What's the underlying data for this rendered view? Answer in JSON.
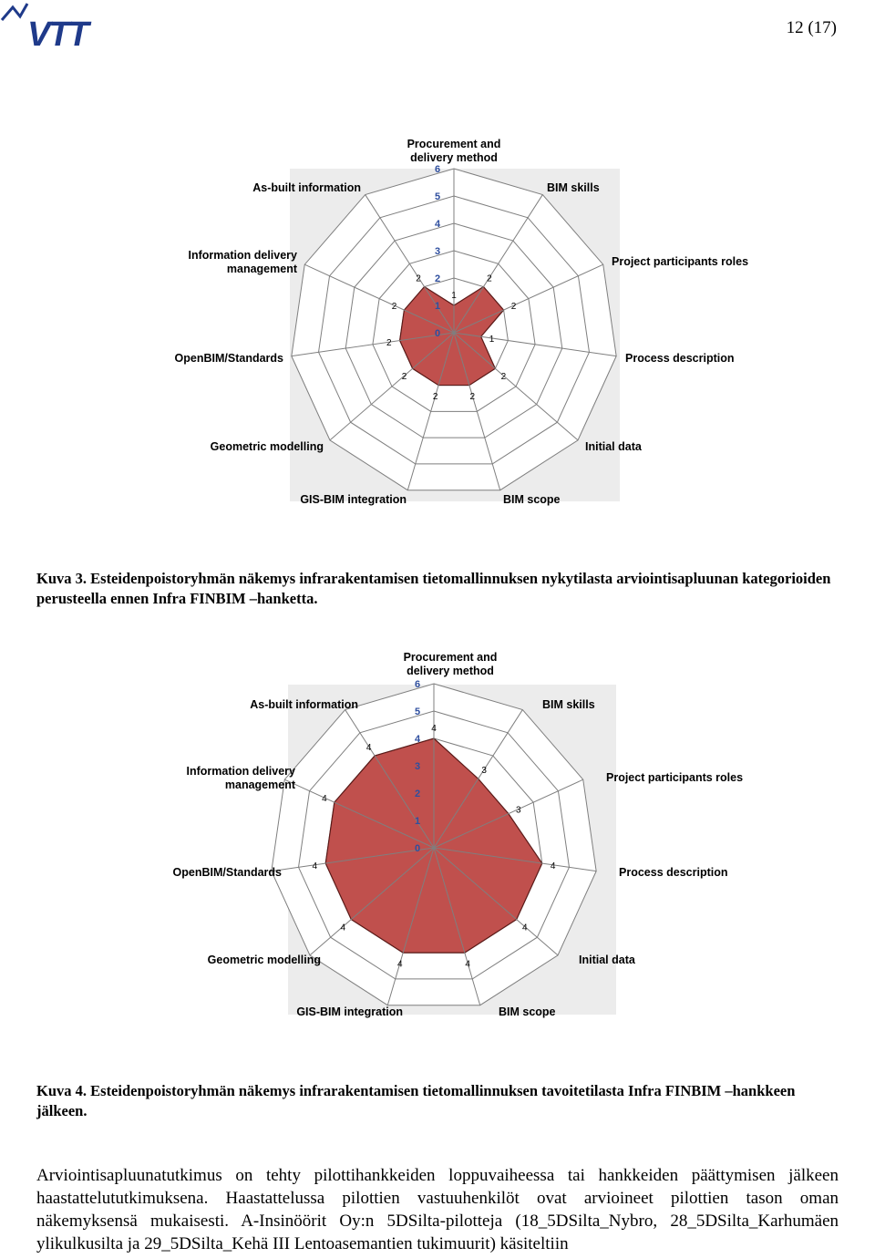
{
  "header": {
    "logo_text": "VTT",
    "page_number": "12 (17)"
  },
  "colors": {
    "logo": "#1f3a8a",
    "fill": "#c0504d",
    "grid": "#7f7f7f",
    "plot_bg": "#ececec",
    "tick": "#2f4f9f"
  },
  "figures": [
    {
      "caption_prefix": "Kuva 3.",
      "caption": "Esteidenpoistoryhmän näkemys infrarakentamisen tietomallinnuksen nykytilasta arviointisapluunan kategorioiden perusteella ennen Infra FINBIM –hanketta."
    },
    {
      "caption_prefix": "Kuva 4.",
      "caption": "Esteidenpoistoryhmän näkemys infrarakentamisen tietomallinnuksen tavoitetilasta Infra FINBIM –hankkeen jälkeen."
    }
  ],
  "chart_data": [
    {
      "type": "radar",
      "categories": [
        "Procurement and delivery method",
        "BIM skills",
        "Project participants roles",
        "Process description",
        "Initial data",
        "BIM scope",
        "GIS-BIM integration",
        "Geometric modelling",
        "OpenBIM/Standards",
        "Information delivery management",
        "As-built information"
      ],
      "values": [
        1,
        2,
        2,
        1,
        2,
        2,
        2,
        2,
        2,
        2,
        2
      ],
      "value_labels": [
        "1",
        "2",
        "2",
        "1",
        "2",
        "2",
        "2",
        "2",
        "2",
        "2",
        "2"
      ],
      "ticks": [
        "0",
        "1",
        "2",
        "3",
        "4",
        "5",
        "6"
      ],
      "rlim": [
        0,
        6
      ],
      "fill_color": "#c0504d",
      "grid": true
    },
    {
      "type": "radar",
      "categories": [
        "Procurement  and delivery method",
        "BIM skills",
        "Project participants roles",
        "Process description",
        "Initial data",
        "BIM scope",
        "GIS-BIM integration",
        "Geometric modelling",
        "OpenBIM/Standards",
        "Information delivery management",
        "As-built information"
      ],
      "values": [
        4,
        3,
        3,
        4,
        4,
        4,
        4,
        4,
        4,
        4,
        4
      ],
      "value_labels": [
        "4",
        "3",
        "3",
        "4",
        "4",
        "4",
        "4",
        "4",
        "4",
        "4",
        "4"
      ],
      "ticks": [
        "0",
        "1",
        "2",
        "3",
        "4",
        "5",
        "6"
      ],
      "rlim": [
        0,
        6
      ],
      "fill_color": "#c0504d",
      "grid": true
    }
  ],
  "body": {
    "paragraph": "Arviointisapluunatutkimus on tehty pilottihankkeiden loppuvaiheessa tai hankkeiden päättymisen jälkeen haastattelututkimuksena. Haastattelussa pilottien vastuuhenkilöt ovat arvioineet pilottien tason oman näkemyksensä mukaisesti. A-Insinöörit Oy:n 5DSilta-pilotteja (18_5DSilta_Nybro, 28_5DSilta_Karhumäen ylikulkusilta ja 29_5DSilta_Kehä III Lentoasemantien tukimuurit) käsiteltiin"
  }
}
